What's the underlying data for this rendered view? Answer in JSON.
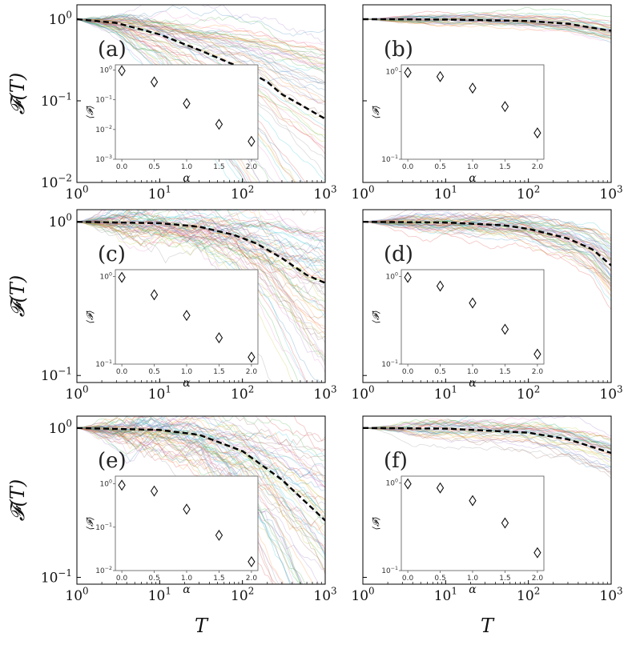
{
  "figure": {
    "ylabel": "𝓕(T)",
    "xlabel": "T",
    "inset_xlabel": "α",
    "inset_ylabel": "⟨𝓕⟩"
  },
  "chart_data": [
    {
      "type": "line",
      "panel": "(a)",
      "xscale": "log",
      "yscale": "log",
      "xlim": [
        1,
        1000
      ],
      "ylim": [
        0.01,
        1.5
      ],
      "xticks": [
        "10^0",
        "10^1",
        "10^2",
        "10^3"
      ],
      "yticks": [
        "10^-2",
        "10^-1",
        "10^0"
      ],
      "mean_series": {
        "name": "mean",
        "x": [
          1,
          3,
          10,
          30,
          100,
          200,
          300,
          500,
          1000
        ],
        "y": [
          1.0,
          0.9,
          0.65,
          0.42,
          0.25,
          0.17,
          0.12,
          0.09,
          0.06
        ]
      },
      "spread": "wide",
      "inset": {
        "type": "scatter",
        "yscale": "log",
        "ylim": [
          0.001,
          1.5
        ],
        "yticks": [
          "10^0",
          "10^-1",
          "10^-2",
          "10^-3"
        ],
        "xticks": [
          "0.0",
          "0.5",
          "1.0",
          "1.5",
          "2.0"
        ],
        "x": [
          0.0,
          0.5,
          1.0,
          1.5,
          2.0
        ],
        "y": [
          0.95,
          0.4,
          0.075,
          0.015,
          0.004
        ]
      }
    },
    {
      "type": "line",
      "panel": "(b)",
      "xscale": "log",
      "yscale": "log",
      "xlim": [
        1,
        1000
      ],
      "ylim": [
        0.01,
        1.5
      ],
      "xticks": [
        "10^0",
        "10^1",
        "10^2",
        "10^3"
      ],
      "yticks": [],
      "mean_series": {
        "name": "mean",
        "x": [
          1,
          10,
          100,
          300,
          1000
        ],
        "y": [
          1.0,
          0.99,
          0.95,
          0.88,
          0.72
        ]
      },
      "spread": "narrow",
      "inset": {
        "type": "scatter",
        "yscale": "log",
        "ylim": [
          0.1,
          1.2
        ],
        "yticks": [
          "10^0",
          "10^-1"
        ],
        "xticks": [
          "0.0",
          "0.5",
          "1.0",
          "1.5",
          "2.0"
        ],
        "x": [
          0.0,
          0.5,
          1.0,
          1.5,
          2.0
        ],
        "y": [
          0.98,
          0.88,
          0.65,
          0.4,
          0.2
        ]
      }
    },
    {
      "type": "line",
      "panel": "(c)",
      "xscale": "log",
      "yscale": "log",
      "xlim": [
        1,
        1000
      ],
      "ylim": [
        0.09,
        1.2
      ],
      "xticks": [
        "10^0",
        "10^1",
        "10^2",
        "10^3"
      ],
      "yticks": [
        "10^-1",
        "10^0"
      ],
      "mean_series": {
        "name": "mean",
        "x": [
          1,
          10,
          30,
          80,
          150,
          300,
          600,
          1000
        ],
        "y": [
          1.0,
          0.98,
          0.93,
          0.82,
          0.72,
          0.58,
          0.45,
          0.4
        ]
      },
      "spread": "wide",
      "inset": {
        "type": "scatter",
        "yscale": "log",
        "ylim": [
          0.1,
          1.2
        ],
        "yticks": [
          "10^0",
          "10^-1"
        ],
        "xticks": [
          "0.0",
          "0.5",
          "1.0",
          "1.5",
          "2.0"
        ],
        "x": [
          0.0,
          0.5,
          1.0,
          1.5,
          2.0
        ],
        "y": [
          0.98,
          0.62,
          0.36,
          0.2,
          0.12
        ]
      }
    },
    {
      "type": "line",
      "panel": "(d)",
      "xscale": "log",
      "yscale": "log",
      "xlim": [
        1,
        1000
      ],
      "ylim": [
        0.09,
        1.2
      ],
      "xticks": [
        "10^0",
        "10^1",
        "10^2",
        "10^3"
      ],
      "yticks": [],
      "mean_series": {
        "name": "mean",
        "x": [
          1,
          10,
          50,
          100,
          300,
          600,
          1000
        ],
        "y": [
          1.0,
          0.99,
          0.95,
          0.9,
          0.78,
          0.66,
          0.52
        ]
      },
      "spread": "medium",
      "inset": {
        "type": "scatter",
        "yscale": "log",
        "ylim": [
          0.1,
          1.2
        ],
        "yticks": [
          "10^0",
          "10^-1"
        ],
        "xticks": [
          "0.0",
          "0.5",
          "1.0",
          "1.5",
          "2.0"
        ],
        "x": [
          0.0,
          0.5,
          1.0,
          1.5,
          2.0
        ],
        "y": [
          0.98,
          0.78,
          0.5,
          0.25,
          0.13
        ]
      }
    },
    {
      "type": "line",
      "panel": "(e)",
      "xscale": "log",
      "yscale": "log",
      "xlim": [
        1,
        1000
      ],
      "ylim": [
        0.09,
        1.2
      ],
      "xticks": [
        "10^0",
        "10^1",
        "10^2",
        "10^3"
      ],
      "yticks": [
        "10^-1",
        "10^0"
      ],
      "mean_series": {
        "name": "mean",
        "x": [
          1,
          10,
          30,
          100,
          300,
          1000
        ],
        "y": [
          1.0,
          0.97,
          0.9,
          0.7,
          0.45,
          0.24
        ]
      },
      "spread": "wide",
      "inset": {
        "type": "scatter",
        "yscale": "log",
        "ylim": [
          0.01,
          1.5
        ],
        "yticks": [
          "10^0",
          "10^-1",
          "10^-2"
        ],
        "xticks": [
          "0.0",
          "0.5",
          "1.0",
          "1.5",
          "2.0"
        ],
        "x": [
          0.0,
          0.5,
          1.0,
          1.5,
          2.0
        ],
        "y": [
          0.93,
          0.68,
          0.26,
          0.065,
          0.016
        ]
      }
    },
    {
      "type": "line",
      "panel": "(f)",
      "xscale": "log",
      "yscale": "log",
      "xlim": [
        1,
        1000
      ],
      "ylim": [
        0.09,
        1.2
      ],
      "xticks": [
        "10^0",
        "10^1",
        "10^2",
        "10^3"
      ],
      "yticks": [],
      "mean_series": {
        "name": "mean",
        "x": [
          1,
          10,
          100,
          300,
          1000
        ],
        "y": [
          1.0,
          0.99,
          0.93,
          0.84,
          0.68
        ]
      },
      "spread": "narrow",
      "inset": {
        "type": "scatter",
        "yscale": "log",
        "ylim": [
          0.1,
          1.2
        ],
        "yticks": [
          "10^0",
          "10^-1"
        ],
        "xticks": [
          "0.0",
          "0.5",
          "1.0",
          "1.5",
          "2.0"
        ],
        "x": [
          0.0,
          0.5,
          1.0,
          1.5,
          2.0
        ],
        "y": [
          0.98,
          0.88,
          0.63,
          0.35,
          0.16
        ]
      }
    }
  ]
}
